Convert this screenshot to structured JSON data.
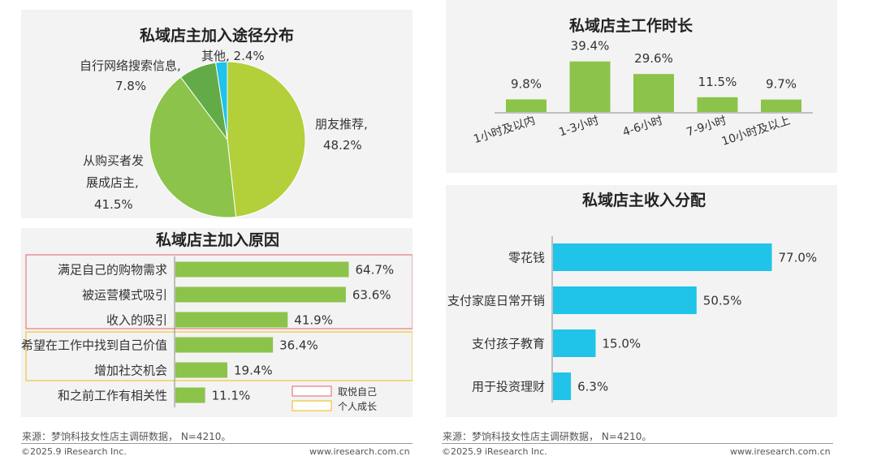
{
  "left": {
    "pie": {
      "title": "私域店主加入途径分布",
      "chart_data": {
        "type": "pie",
        "slices": [
          {
            "label": "朋友推荐,",
            "value": 48.2,
            "value_label": "48.2%",
            "color": "#b3cf3a"
          },
          {
            "label": "从购买者发展成店主,",
            "value": 41.5,
            "value_label": "41.5%",
            "color": "#8cc34a"
          },
          {
            "label": "自行网络搜索信息,",
            "value": 7.8,
            "value_label": "7.8%",
            "color": "#63ab46"
          },
          {
            "label": "其他,",
            "value": 2.4,
            "value_label": "2.4%",
            "color": "#1fc4e8"
          }
        ]
      },
      "label_lines": {
        "friend": [
          "朋友推荐,",
          "48.2%"
        ],
        "buyer": [
          "从购买者发",
          "展成店主,",
          "41.5%"
        ],
        "search": [
          "自行网络搜索信息,",
          "7.8%"
        ],
        "other": "其他, 2.4%"
      }
    },
    "reasons": {
      "title": "私域店主加入原因",
      "chart_data": {
        "type": "bar",
        "orientation": "horizontal",
        "categories": [
          "满足自己的购物需求",
          "被运营模式吸引",
          "收入的吸引",
          "希望在工作中找到自己价值",
          "增加社交机会",
          "和之前工作有相关性"
        ],
        "values": [
          64.7,
          63.6,
          41.9,
          36.4,
          19.4,
          11.1
        ],
        "value_labels": [
          "64.7%",
          "63.6%",
          "41.9%",
          "36.4%",
          "19.4%",
          "11.1%"
        ],
        "color": "#8cc34a"
      },
      "legend": [
        {
          "label": "取悦自己",
          "color": "#e77b82"
        },
        {
          "label": "个人成长",
          "color": "#f2c531"
        }
      ]
    },
    "footer": {
      "source": "来源：梦饷科技女性店主调研数据， N=4210。",
      "copyright": "©2025.9 iResearch Inc.",
      "url": "www.iresearch.com.cn"
    }
  },
  "right": {
    "hours": {
      "title": "私域店主工作时长",
      "chart_data": {
        "type": "bar",
        "categories": [
          "1小时及以内",
          "1-3小时",
          "4-6小时",
          "7-9小时",
          "10小时及以上"
        ],
        "values": [
          9.8,
          39.4,
          29.6,
          11.5,
          9.7
        ],
        "value_labels": [
          "9.8%",
          "39.4%",
          "29.6%",
          "11.5%",
          "9.7%"
        ],
        "color": "#8cc34a"
      }
    },
    "income": {
      "title": "私域店主收入分配",
      "chart_data": {
        "type": "bar",
        "orientation": "horizontal",
        "categories": [
          "零花钱",
          "支付家庭日常开销",
          "支付孩子教育",
          "用于投资理财"
        ],
        "values": [
          77.0,
          50.5,
          15.0,
          6.3
        ],
        "value_labels": [
          "77.0%",
          "50.5%",
          "15.0%",
          "6.3%"
        ],
        "color": "#1fc4e8"
      }
    },
    "footer": {
      "source": "来源：梦饷科技女性店主调研数据， N=4210。",
      "copyright": "©2025.9 iResearch Inc.",
      "url": "www.iresearch.com.cn"
    }
  }
}
